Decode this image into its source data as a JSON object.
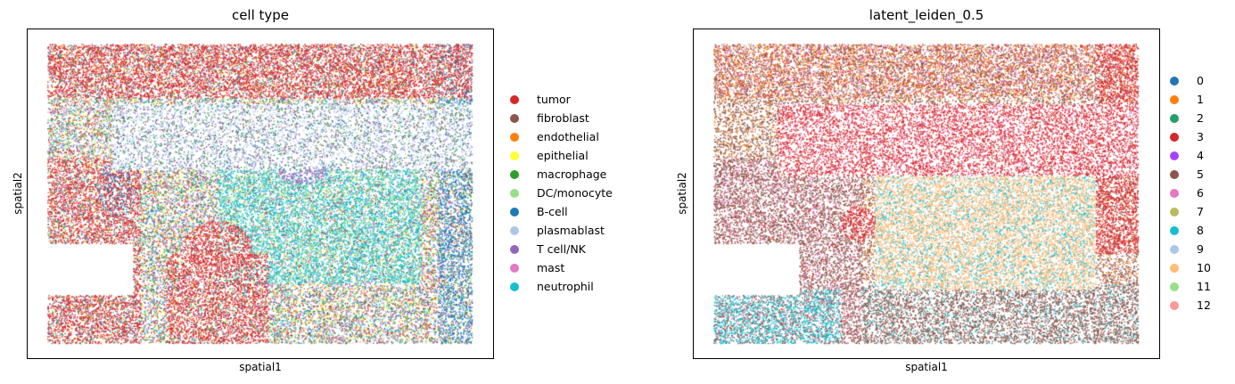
{
  "chart_data": [
    {
      "type": "scatter",
      "title": "cell type",
      "xlabel": "spatial1",
      "ylabel": "spatial2",
      "grid": false,
      "legend_placement": "right",
      "categories": [
        {
          "name": "tumor",
          "color": "#d62728"
        },
        {
          "name": "fibroblast",
          "color": "#8c564b"
        },
        {
          "name": "endothelial",
          "color": "#ff7f0e"
        },
        {
          "name": "epithelial",
          "color": "#ffff33"
        },
        {
          "name": "macrophage",
          "color": "#2ca02c"
        },
        {
          "name": "DC/monocyte",
          "color": "#98df8a"
        },
        {
          "name": "B-cell",
          "color": "#1f77b4"
        },
        {
          "name": "plasmablast",
          "color": "#aec7e8"
        },
        {
          "name": "T cell/NK",
          "color": "#9467bd"
        },
        {
          "name": "mast",
          "color": "#e377c2"
        },
        {
          "name": "neutrophil",
          "color": "#17becf"
        }
      ]
    },
    {
      "type": "scatter",
      "title": "latent_leiden_0.5",
      "xlabel": "spatial1",
      "ylabel": "spatial2",
      "grid": false,
      "legend_placement": "right",
      "categories": [
        {
          "name": "0",
          "color": "#1f77b4"
        },
        {
          "name": "1",
          "color": "#ff7f0e"
        },
        {
          "name": "2",
          "color": "#279e68"
        },
        {
          "name": "3",
          "color": "#d62728"
        },
        {
          "name": "4",
          "color": "#aa40fc"
        },
        {
          "name": "5",
          "color": "#8c564b"
        },
        {
          "name": "6",
          "color": "#e377c2"
        },
        {
          "name": "7",
          "color": "#b5bd61"
        },
        {
          "name": "8",
          "color": "#17becf"
        },
        {
          "name": "9",
          "color": "#aec7e8"
        },
        {
          "name": "10",
          "color": "#ffbb78"
        },
        {
          "name": "11",
          "color": "#98df8a"
        },
        {
          "name": "12",
          "color": "#ff9896"
        }
      ]
    }
  ]
}
